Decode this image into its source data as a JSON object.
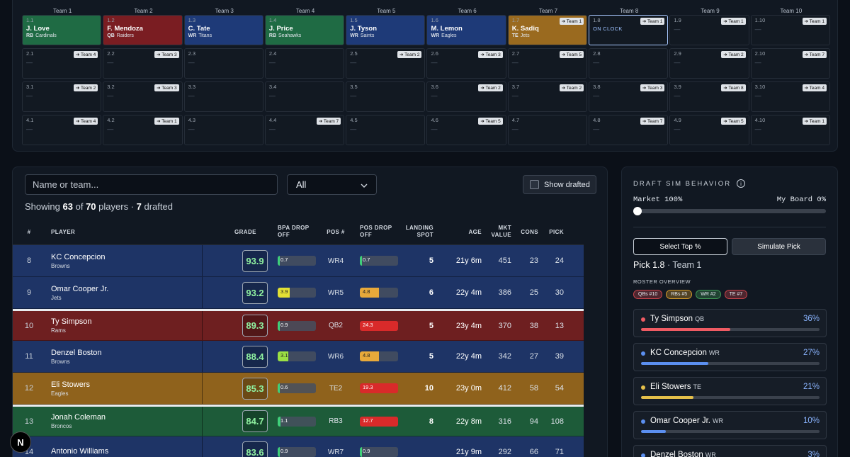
{
  "board": {
    "teams": [
      "Team 1",
      "Team 2",
      "Team 3",
      "Team 4",
      "Team 5",
      "Team 6",
      "Team 7",
      "Team 8",
      "Team 9",
      "Team 10"
    ],
    "rows": [
      [
        {
          "pick": "1.1",
          "name": "J. Love",
          "pos": "RB",
          "team": "Cardinals",
          "color": "#1f6b44"
        },
        {
          "pick": "1.2",
          "name": "F. Mendoza",
          "pos": "QB",
          "team": "Raiders",
          "color": "#7a1d22"
        },
        {
          "pick": "1.3",
          "name": "C. Tate",
          "pos": "WR",
          "team": "Titans",
          "color": "#1e3a78"
        },
        {
          "pick": "1.4",
          "name": "J. Price",
          "pos": "RB",
          "team": "Seahawks",
          "color": "#1f6b44"
        },
        {
          "pick": "1.5",
          "name": "J. Tyson",
          "pos": "WR",
          "team": "Saints",
          "color": "#1e3a78"
        },
        {
          "pick": "1.6",
          "name": "M. Lemon",
          "pos": "WR",
          "team": "Eagles",
          "color": "#1e3a78"
        },
        {
          "pick": "1.7",
          "name": "K. Sadiq",
          "pos": "TE",
          "team": "Jets",
          "color": "#9a6a1f",
          "trade": "Team 1"
        },
        {
          "pick": "1.8",
          "status": "ON CLOCK",
          "trade": "Team 1",
          "clock": true
        },
        {
          "pick": "1.9",
          "trade": "Team 1"
        },
        {
          "pick": "1.10",
          "trade": "Team 1"
        }
      ],
      [
        {
          "pick": "2.1",
          "trade": "Team 4"
        },
        {
          "pick": "2.2",
          "trade": "Team 3"
        },
        {
          "pick": "2.3"
        },
        {
          "pick": "2.4"
        },
        {
          "pick": "2.5",
          "trade": "Team 2"
        },
        {
          "pick": "2.6",
          "trade": "Team 3"
        },
        {
          "pick": "2.7",
          "trade": "Team 5"
        },
        {
          "pick": "2.8"
        },
        {
          "pick": "2.9",
          "trade": "Team 2"
        },
        {
          "pick": "2.10",
          "trade": "Team 7"
        }
      ],
      [
        {
          "pick": "3.1",
          "trade": "Team 2"
        },
        {
          "pick": "3.2",
          "trade": "Team 3"
        },
        {
          "pick": "3.3"
        },
        {
          "pick": "3.4"
        },
        {
          "pick": "3.5"
        },
        {
          "pick": "3.6",
          "trade": "Team 2"
        },
        {
          "pick": "3.7",
          "trade": "Team 2"
        },
        {
          "pick": "3.8",
          "trade": "Team 3"
        },
        {
          "pick": "3.9",
          "trade": "Team 8"
        },
        {
          "pick": "3.10",
          "trade": "Team 4"
        }
      ],
      [
        {
          "pick": "4.1",
          "trade": "Team 4"
        },
        {
          "pick": "4.2",
          "trade": "Team 1"
        },
        {
          "pick": "4.3"
        },
        {
          "pick": "4.4",
          "trade": "Team 7"
        },
        {
          "pick": "4.5"
        },
        {
          "pick": "4.6",
          "trade": "Team 5"
        },
        {
          "pick": "4.7"
        },
        {
          "pick": "4.8",
          "trade": "Team 7"
        },
        {
          "pick": "4.9",
          "trade": "Team 5"
        },
        {
          "pick": "4.10",
          "trade": "Team 1"
        }
      ]
    ],
    "empty": "—"
  },
  "filters": {
    "search_placeholder": "Name or team...",
    "position_value": "All",
    "show_drafted": "Show drafted",
    "showing_prefix": "Showing",
    "shown": "63",
    "of": "of",
    "total": "70",
    "players_word": "players ·",
    "drafted": "7",
    "drafted_word": "drafted"
  },
  "table": {
    "headers": {
      "num": "#",
      "player": "PLAYER",
      "grade": "GRADE",
      "bpa": "BPA DROP OFF",
      "pos": "POS #",
      "posdrop": "POS DROP OFF",
      "land": "LANDING SPOT",
      "age": "AGE",
      "mkt": "MKT VALUE",
      "cons": "CONS",
      "pick": "PICK"
    },
    "rows": [
      {
        "num": "8",
        "name": "KC Concepcion",
        "team": "Browns",
        "grade": "93.9",
        "bpa": "0.7",
        "bpa_pct": 0.05,
        "bpa_color": "#3fd07a",
        "pos": "WR4",
        "posdrop": "0.7",
        "posdrop_pct": 0.05,
        "posdrop_color": "#3fd07a",
        "land": "5",
        "age": "21y 6m",
        "mkt": "451",
        "cons": "23",
        "pick": "24",
        "bg": "#1e3466"
      },
      {
        "num": "9",
        "name": "Omar Cooper Jr.",
        "team": "Jets",
        "grade": "93.2",
        "bpa": "3.9",
        "bpa_pct": 0.32,
        "bpa_color": "#e2e034",
        "pos": "WR5",
        "posdrop": "4.8",
        "posdrop_pct": 0.5,
        "posdrop_color": "#e8a93a",
        "land": "6",
        "age": "22y 4m",
        "mkt": "386",
        "cons": "25",
        "pick": "30",
        "bg": "#1e3466"
      },
      {
        "num": "10",
        "name": "Ty Simpson",
        "team": "Rams",
        "grade": "89.3",
        "bpa": "0.9",
        "bpa_pct": 0.05,
        "bpa_color": "#3fd07a",
        "pos": "QB2",
        "posdrop": "24.3",
        "posdrop_pct": 1.0,
        "posdrop_color": "#d92a2a",
        "land": "5",
        "age": "23y 4m",
        "mkt": "370",
        "cons": "38",
        "pick": "13",
        "bg": "#6e1f20",
        "sep": true
      },
      {
        "num": "11",
        "name": "Denzel Boston",
        "team": "Browns",
        "grade": "88.4",
        "bpa": "3.1",
        "bpa_pct": 0.28,
        "bpa_color": "#9be044",
        "pos": "WR6",
        "posdrop": "4.8",
        "posdrop_pct": 0.5,
        "posdrop_color": "#e8a93a",
        "land": "5",
        "age": "22y 4m",
        "mkt": "342",
        "cons": "27",
        "pick": "39",
        "bg": "#1e3466"
      },
      {
        "num": "12",
        "name": "Eli Stowers",
        "team": "Eagles",
        "grade": "85.3",
        "bpa": "0.6",
        "bpa_pct": 0.05,
        "bpa_color": "#3fd07a",
        "pos": "TE2",
        "posdrop": "19.3",
        "posdrop_pct": 1.0,
        "posdrop_color": "#d92a2a",
        "land": "10",
        "age": "23y 0m",
        "mkt": "412",
        "cons": "58",
        "pick": "54",
        "bg": "#8f621c"
      },
      {
        "num": "13",
        "name": "Jonah Coleman",
        "team": "Broncos",
        "grade": "84.7",
        "bpa": "1.1",
        "bpa_pct": 0.07,
        "bpa_color": "#3fd07a",
        "pos": "RB3",
        "posdrop": "12.7",
        "posdrop_pct": 1.0,
        "posdrop_color": "#d92a2a",
        "land": "8",
        "age": "22y 8m",
        "mkt": "316",
        "cons": "94",
        "pick": "108",
        "bg": "#1d5b39",
        "sep": true
      },
      {
        "num": "14",
        "name": "Antonio Williams",
        "team": "",
        "grade": "83.6",
        "bpa": "0.9",
        "bpa_pct": 0.05,
        "bpa_color": "#3fd07a",
        "pos": "WR7",
        "posdrop": "0.9",
        "posdrop_pct": 0.05,
        "posdrop_color": "#3fd07a",
        "land": "",
        "age": "21y 9m",
        "mkt": "292",
        "cons": "66",
        "pick": "71",
        "bg": "#1e3466"
      }
    ]
  },
  "sim": {
    "title": "DRAFT SIM BEHAVIOR",
    "info_icon": "i",
    "market": "Market 100%",
    "myboard": "My Board 0%",
    "slider_value": 0,
    "btn_top": "Select Top %",
    "btn_sim": "Simulate Pick",
    "pick": "Pick 1.8",
    "pick_sep": "·",
    "pick_team": "Team 1",
    "roster_title": "ROSTER OVERVIEW",
    "badges": [
      {
        "label": "QBs #10",
        "color": "#c8434a"
      },
      {
        "label": "RBs #5",
        "color": "#d49a2a"
      },
      {
        "label": "WR #2",
        "color": "#3f9a55"
      },
      {
        "label": "TE #7",
        "color": "#c8434a"
      }
    ],
    "probs": [
      {
        "name": "Ty Simpson",
        "pos": "QB",
        "pct": "36%",
        "value": 0.36,
        "color": "#ef5b63"
      },
      {
        "name": "KC Concepcion",
        "pos": "WR",
        "pct": "27%",
        "value": 0.27,
        "color": "#5b8ff0"
      },
      {
        "name": "Eli Stowers",
        "pos": "TE",
        "pct": "21%",
        "value": 0.21,
        "color": "#e5c04a"
      },
      {
        "name": "Omar Cooper Jr.",
        "pos": "WR",
        "pct": "10%",
        "value": 0.1,
        "color": "#5b8ff0"
      },
      {
        "name": "Denzel Boston",
        "pos": "WR",
        "pct": "3%",
        "value": 0.03,
        "color": "#5b8ff0"
      }
    ]
  },
  "logo": "N"
}
